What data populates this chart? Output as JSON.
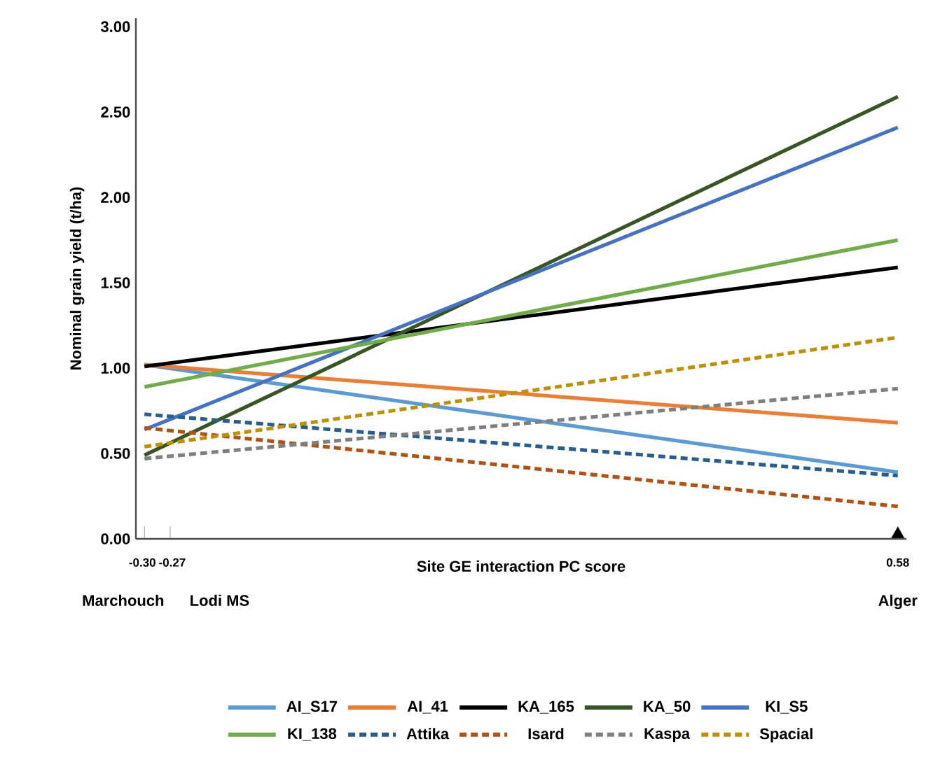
{
  "chart_data": {
    "type": "line",
    "xlabel": "Site GE interaction PC score",
    "ylabel": "Nominal grain yield (t/ha)",
    "x": [
      -0.3,
      0.58
    ],
    "xlim": [
      -0.31,
      0.59
    ],
    "ylim": [
      0,
      3.05
    ],
    "xticks": [
      {
        "value": -0.3,
        "label": "-0.30"
      },
      {
        "value": -0.27,
        "label": "-0.27"
      },
      {
        "value": 0.58,
        "label": "0.58"
      }
    ],
    "yticks": [
      {
        "value": 0,
        "label": "0.00"
      },
      {
        "value": 0.5,
        "label": "0.50"
      },
      {
        "value": 1,
        "label": "1.00"
      },
      {
        "value": 1.5,
        "label": "1.50"
      },
      {
        "value": 2,
        "label": "2.00"
      },
      {
        "value": 2.5,
        "label": "2.50"
      },
      {
        "value": 3,
        "label": "3.00"
      }
    ],
    "annotations": [
      "Marchouch",
      "Lodi MS",
      "Alger"
    ],
    "legend": "bottom",
    "series": [
      {
        "name": "AI_S17",
        "color": "#5b9bd5",
        "line_style": "solid",
        "values": [
          1.02,
          0.39
        ]
      },
      {
        "name": "AI_41",
        "color": "#ed7d31",
        "line_style": "solid",
        "values": [
          1.02,
          0.68
        ]
      },
      {
        "name": "KA_165",
        "color": "#000000",
        "line_style": "solid",
        "values": [
          1.01,
          1.59
        ]
      },
      {
        "name": "KA_50",
        "color": "#375623",
        "line_style": "solid",
        "values": [
          0.49,
          2.59
        ]
      },
      {
        "name": "KI_S5",
        "color": "#4472c4",
        "line_style": "solid",
        "values": [
          0.64,
          2.41
        ]
      },
      {
        "name": "KI_138",
        "color": "#70ad47",
        "line_style": "solid",
        "values": [
          0.89,
          1.75
        ]
      },
      {
        "name": "Attika",
        "color": "#255e91",
        "line_style": "dashed",
        "values": [
          0.73,
          0.37
        ]
      },
      {
        "name": "Isard",
        "color": "#b5510f",
        "line_style": "dashed",
        "values": [
          0.65,
          0.19
        ]
      },
      {
        "name": "Kaspa",
        "color": "#7f7f7f",
        "line_style": "dashed",
        "values": [
          0.47,
          0.88
        ]
      },
      {
        "name": "Spacial",
        "color": "#bf9000",
        "line_style": "dashed",
        "values": [
          0.54,
          1.18
        ]
      }
    ]
  }
}
